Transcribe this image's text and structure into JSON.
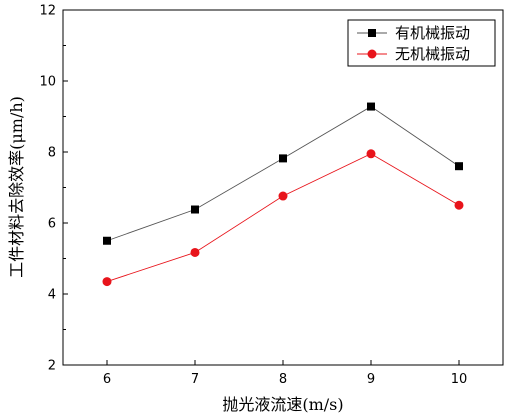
{
  "chart_data": {
    "type": "line",
    "xlabel": "抛光液流速(m/s)",
    "ylabel": "工件材料去除效率(μm/h)",
    "x": [
      6,
      7,
      8,
      9,
      10
    ],
    "xticks": [
      "6",
      "7",
      "8",
      "9",
      "10"
    ],
    "xlim": [
      5.5,
      10.5
    ],
    "yticks": [
      "2",
      "4",
      "6",
      "8",
      "10",
      "12"
    ],
    "ylim": [
      2,
      12
    ],
    "grid": false,
    "legend_position": "top-right",
    "series": [
      {
        "name": "有机械振动",
        "values": [
          5.5,
          6.38,
          7.82,
          9.28,
          7.6
        ],
        "color": "#000000",
        "line_color": "#555555",
        "marker": "square"
      },
      {
        "name": "无机械振动",
        "values": [
          4.35,
          5.17,
          6.76,
          7.95,
          6.5
        ],
        "color": "#e8141b",
        "line_color": "#e8141b",
        "marker": "circle"
      }
    ]
  }
}
